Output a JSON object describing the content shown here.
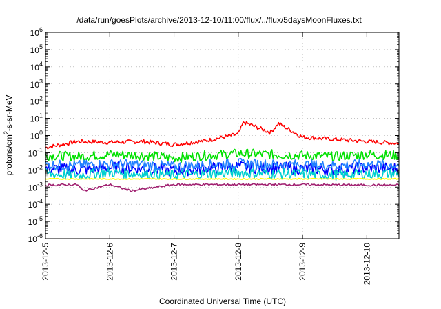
{
  "chart_data": {
    "type": "line",
    "title": "/data/run/goesPlots/archive/2013-12-10/11:00/flux/../flux/5daysMoonFluxes.txt",
    "xlabel": "Coordinated Universal Time (UTC)",
    "ylabel_parts": {
      "pre": "protons/cm",
      "sup": "2",
      "post": "-s-sr-MeV"
    },
    "y_scale": "log",
    "ylim": [
      1e-06,
      1000000.0
    ],
    "y_ticks": [
      {
        "base": "10",
        "exp": "-6"
      },
      {
        "base": "10",
        "exp": "-5"
      },
      {
        "base": "10",
        "exp": "-4"
      },
      {
        "base": "10",
        "exp": "-3"
      },
      {
        "base": "10",
        "exp": "-2"
      },
      {
        "base": "10",
        "exp": "-1"
      },
      {
        "base": "10",
        "exp": "0"
      },
      {
        "base": "10",
        "exp": "1"
      },
      {
        "base": "10",
        "exp": "2"
      },
      {
        "base": "10",
        "exp": "3"
      },
      {
        "base": "10",
        "exp": "4"
      },
      {
        "base": "10",
        "exp": "5"
      },
      {
        "base": "10",
        "exp": "6"
      }
    ],
    "xlim": [
      "2013-12-05",
      "2013-12-10 12:00"
    ],
    "x_ticks": [
      "2013-12-5",
      "2013-12-6",
      "2013-12-7",
      "2013-12-8",
      "2013-12-9",
      "2013-12-10"
    ],
    "grid": true,
    "series": [
      {
        "color": "#ff0000",
        "x": [
          "2013-12-05",
          "2013-12-05 12:00",
          "2013-12-06",
          "2013-12-06 12:00",
          "2013-12-07",
          "2013-12-07 12:00",
          "2013-12-08",
          "2013-12-08 02:00",
          "2013-12-08 12:00",
          "2013-12-08 15:00",
          "2013-12-09",
          "2013-12-09 12:00",
          "2013-12-10",
          "2013-12-10 12:00"
        ],
        "y": [
          0.2,
          0.45,
          0.4,
          0.45,
          0.3,
          0.5,
          1.2,
          6,
          1.5,
          5,
          0.8,
          0.6,
          0.45,
          0.35
        ]
      },
      {
        "color": "#00e000",
        "x": [
          "2013-12-05",
          "2013-12-05 12:00",
          "2013-12-06",
          "2013-12-06 12:00",
          "2013-12-07",
          "2013-12-07 12:00",
          "2013-12-08",
          "2013-12-08 12:00",
          "2013-12-09",
          "2013-12-09 12:00",
          "2013-12-10",
          "2013-12-10 12:00"
        ],
        "y": [
          0.07,
          0.06,
          0.08,
          0.07,
          0.05,
          0.07,
          0.09,
          0.08,
          0.07,
          0.06,
          0.08,
          0.07
        ]
      },
      {
        "color": "#0000ff",
        "x": [
          "2013-12-05",
          "2013-12-05 12:00",
          "2013-12-06",
          "2013-12-06 12:00",
          "2013-12-07",
          "2013-12-07 12:00",
          "2013-12-08",
          "2013-12-08 12:00",
          "2013-12-09",
          "2013-12-09 12:00",
          "2013-12-10",
          "2013-12-10 12:00"
        ],
        "y": [
          0.012,
          0.01,
          0.014,
          0.012,
          0.009,
          0.012,
          0.015,
          0.013,
          0.012,
          0.01,
          0.013,
          0.012
        ]
      },
      {
        "color": "#2080ff",
        "x": [
          "2013-12-05",
          "2013-12-05 12:00",
          "2013-12-06",
          "2013-12-06 12:00",
          "2013-12-07",
          "2013-12-07 12:00",
          "2013-12-08",
          "2013-12-08 12:00",
          "2013-12-09",
          "2013-12-09 12:00",
          "2013-12-10",
          "2013-12-10 12:00"
        ],
        "y": [
          0.02,
          0.018,
          0.022,
          0.02,
          0.016,
          0.02,
          0.024,
          0.021,
          0.02,
          0.018,
          0.021,
          0.02
        ]
      },
      {
        "color": "#00d0d0",
        "x": [
          "2013-12-05",
          "2013-12-05 12:00",
          "2013-12-06",
          "2013-12-06 12:00",
          "2013-12-07",
          "2013-12-07 12:00",
          "2013-12-08",
          "2013-12-08 12:00",
          "2013-12-09",
          "2013-12-09 12:00",
          "2013-12-10",
          "2013-12-10 12:00"
        ],
        "y": [
          0.006,
          0.005,
          0.007,
          0.006,
          0.005,
          0.006,
          0.007,
          0.006,
          0.006,
          0.005,
          0.006,
          0.006
        ]
      },
      {
        "color": "#ffff00",
        "x": [
          "2013-12-05",
          "2013-12-10 12:00"
        ],
        "y": [
          0.003,
          0.003
        ]
      },
      {
        "color": "#a02070",
        "x": [
          "2013-12-05",
          "2013-12-05 12:00",
          "2013-12-05 14:00",
          "2013-12-06",
          "2013-12-06 08:00",
          "2013-12-07",
          "2013-12-08",
          "2013-12-09",
          "2013-12-10",
          "2013-12-10 12:00"
        ],
        "y": [
          0.0013,
          0.0014,
          0.0006,
          0.0014,
          0.0006,
          0.0014,
          0.0014,
          0.0014,
          0.0013,
          0.0013
        ]
      }
    ]
  }
}
